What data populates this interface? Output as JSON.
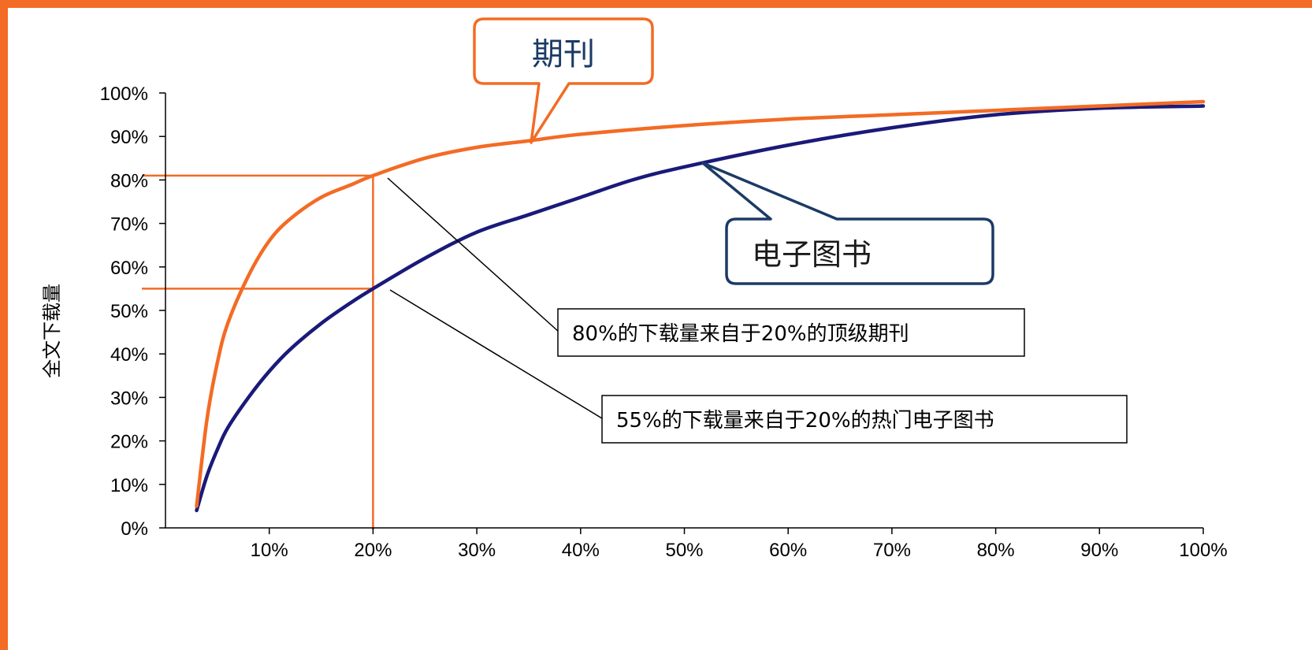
{
  "colors": {
    "accent": "#f36b24",
    "journal_series": "#f36b24",
    "ebook_series": "#1a1a7a",
    "callout_ebook_border": "#1b3a66",
    "axis": "#000000"
  },
  "chart_data": {
    "type": "line",
    "ylabel": "全文下载量",
    "xlabel": "",
    "xlim": [
      0,
      100
    ],
    "ylim": [
      0,
      100
    ],
    "x_ticks": [
      "10%",
      "20%",
      "30%",
      "40%",
      "50%",
      "60%",
      "70%",
      "80%",
      "90%",
      "100%"
    ],
    "y_ticks": [
      "0%",
      "10%",
      "20%",
      "30%",
      "40%",
      "50%",
      "60%",
      "70%",
      "80%",
      "90%",
      "100%"
    ],
    "grid": false,
    "series": [
      {
        "name": "期刊",
        "x": [
          3,
          4,
          5,
          6,
          8,
          10,
          12,
          15,
          18,
          20,
          25,
          30,
          35,
          40,
          50,
          60,
          70,
          80,
          90,
          100
        ],
        "y": [
          5,
          25,
          38,
          47,
          58,
          66,
          71,
          76,
          79,
          81,
          85,
          87.5,
          89,
          90.5,
          92.5,
          94,
          95,
          96,
          97,
          98
        ]
      },
      {
        "name": "电子图书",
        "x": [
          3,
          4,
          5,
          6,
          8,
          10,
          12,
          15,
          18,
          20,
          25,
          30,
          35,
          40,
          45,
          50,
          60,
          70,
          80,
          90,
          100
        ],
        "y": [
          4,
          12,
          18,
          23,
          30,
          36,
          41,
          47,
          52,
          55,
          62,
          68,
          72,
          76,
          80,
          83,
          88,
          92,
          95,
          96.5,
          97
        ]
      }
    ],
    "reference_lines": [
      {
        "x": 20,
        "y": 81
      },
      {
        "x": 20,
        "y": 55
      }
    ],
    "annotations": [
      {
        "text": "80%的下载量来自于20%的顶级期刊"
      },
      {
        "text": "55%的下载量来自于20%的热门电子图书"
      }
    ]
  }
}
